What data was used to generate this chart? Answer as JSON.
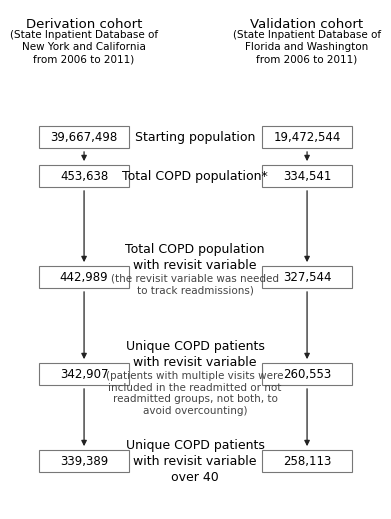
{
  "derivation_title": "Derivation cohort",
  "derivation_subtitle": "(State Inpatient Database of\nNew York and California\nfrom 2006 to 2011)",
  "validation_title": "Validation cohort",
  "validation_subtitle": "(State Inpatient Database of\nFlorida and Washington\nfrom 2006 to 2011)",
  "boxes_derivation": [
    "39,667,498",
    "453,638",
    "442,989",
    "342,907",
    "339,389"
  ],
  "boxes_validation": [
    "19,472,544",
    "334,541",
    "327,544",
    "260,553",
    "258,113"
  ],
  "center_labels": [
    {
      "main": "Starting population",
      "sub": ""
    },
    {
      "main": "Total COPD population*",
      "sub": ""
    },
    {
      "main": "Total COPD population\nwith revisit variable",
      "sub": "(the revisit variable was needed\nto track readmissions)"
    },
    {
      "main": "Unique COPD patients\nwith revisit variable",
      "sub": "(patients with multiple visits were\nincluded in the readmitted or not\nreadmitted groups, not both, to\navoid overcounting)"
    },
    {
      "main": "Unique COPD patients\nwith revisit variable\nover 40",
      "sub": ""
    }
  ],
  "bg_color": "#ffffff",
  "box_color": "#ffffff",
  "box_edge_color": "#777777",
  "text_color": "#000000",
  "arrow_color": "#222222",
  "font_size_title": 9.5,
  "font_size_subtitle": 7.5,
  "font_size_box": 8.5,
  "font_size_center_main": 9,
  "font_size_center_sub": 7.5
}
